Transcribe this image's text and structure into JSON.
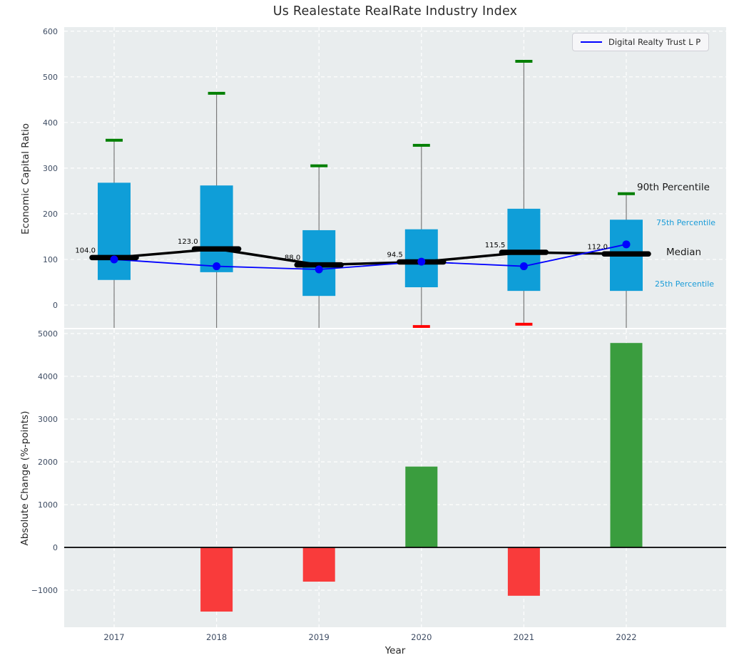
{
  "title": "Us Realestate RealRate Industry Index",
  "xlabel": "Year",
  "legend": {
    "label": "Digital Realty Trust L P"
  },
  "annotations": {
    "p90": "90th Percentile",
    "p75": "75th Percentile",
    "median": "Median",
    "p25": "25th Percentile"
  },
  "colors": {
    "box_fill": "#0f9ed8",
    "whisker": "#7a7a7a",
    "cap_high": "#007f00",
    "cap_low": "#ff0000",
    "median_marker": "#000000",
    "median_trend_line": "#000000",
    "company_line": "#0000ff",
    "bar_positive": "#3a9d3e",
    "bar_negative": "#f93b3b",
    "plot_background": "#e9edee",
    "gridline": "#ffffff",
    "tick_label": "#3e4c63",
    "annotation_accent": "#1a9cd8"
  },
  "chart_data": [
    {
      "type": "box",
      "title": "Us Realestate RealRate Industry Index",
      "ylabel": "Economic Capital Ratio",
      "ylim": [
        -50,
        609
      ],
      "yticks": [
        0,
        100,
        200,
        300,
        400,
        500,
        600
      ],
      "grid": true,
      "legend_position": "upper right",
      "categories": [
        "2017",
        "2018",
        "2019",
        "2020",
        "2021",
        "2022"
      ],
      "boxes": [
        {
          "year": "2017",
          "whisker_high": 361,
          "p75": 268,
          "median": 104.0,
          "p25": 55,
          "whisker_low": null,
          "low_capped": false
        },
        {
          "year": "2018",
          "whisker_high": 464,
          "p75": 262,
          "median": 123.0,
          "p25": 72,
          "whisker_low": null,
          "low_capped": false
        },
        {
          "year": "2019",
          "whisker_high": 305,
          "p75": 164,
          "median": 88.0,
          "p25": 20,
          "whisker_low": null,
          "low_capped": false
        },
        {
          "year": "2020",
          "whisker_high": 350,
          "p75": 166,
          "median": 94.5,
          "p25": 39,
          "whisker_low": -47,
          "low_capped": true
        },
        {
          "year": "2021",
          "whisker_high": 534,
          "p75": 211,
          "median": 115.5,
          "p25": 31,
          "whisker_low": -42,
          "low_capped": true
        },
        {
          "year": "2022",
          "whisker_high": 244,
          "p75": 187,
          "median": 112.0,
          "p25": 31,
          "whisker_low": null,
          "low_capped": false
        }
      ],
      "median_labels": [
        "104.0",
        "123.0",
        "88.0",
        "94.5",
        "115.5",
        "112.0"
      ],
      "median_trend": [
        104.0,
        123.0,
        88.0,
        94.5,
        115.5,
        112.0
      ],
      "series": [
        {
          "name": "Digital Realty Trust L P",
          "values": [
            100,
            85,
            78,
            95,
            85,
            133
          ]
        }
      ]
    },
    {
      "type": "bar",
      "ylabel": "Absolute Change (%-points)",
      "xlabel": "Year",
      "ylim": [
        -1866,
        5100
      ],
      "yticks": [
        -1000,
        0,
        1000,
        2000,
        3000,
        4000,
        5000
      ],
      "grid": true,
      "categories": [
        "2017",
        "2018",
        "2019",
        "2020",
        "2021",
        "2022"
      ],
      "values": [
        0,
        -1500,
        -800,
        1890,
        -1130,
        4780
      ]
    }
  ]
}
